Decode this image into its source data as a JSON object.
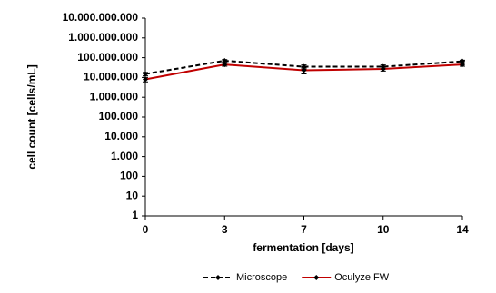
{
  "chart_data": {
    "type": "line",
    "xlabel": "fermentation [days]",
    "ylabel": "cell count [cells/mL]",
    "categories": [
      "0",
      "3",
      "7",
      "10",
      "14"
    ],
    "log_y": true,
    "ylim": [
      1,
      10000000000
    ],
    "yticks": [
      1,
      10,
      100,
      {
        "value": 1000,
        "label": "1.000"
      },
      {
        "value": 10000,
        "label": "10.000"
      },
      {
        "value": 100000,
        "label": "100.000"
      },
      {
        "value": 1000000,
        "label": "1.000.000"
      },
      {
        "value": 10000000,
        "label": "10.000.000"
      },
      {
        "value": 100000000,
        "label": "100.000.000"
      },
      {
        "value": 1000000000,
        "label": "1.000.000.000"
      },
      {
        "value": 10000000000,
        "label": "10.000.000.000"
      }
    ],
    "grid": false,
    "legend": "bottom",
    "series": [
      {
        "name": "Microscope",
        "color": "#000000",
        "dashed": true,
        "values": [
          15000000,
          70000000,
          35000000,
          35000000,
          65000000
        ],
        "errors": [
          3000000,
          10000000,
          8000000,
          8000000,
          10000000
        ]
      },
      {
        "name": "Oculyze FW",
        "color": "#c00000",
        "dashed": false,
        "values": [
          8000000,
          45000000,
          23000000,
          27000000,
          45000000
        ],
        "errors": [
          2000000,
          8000000,
          8000000,
          6000000,
          8000000
        ]
      }
    ]
  }
}
